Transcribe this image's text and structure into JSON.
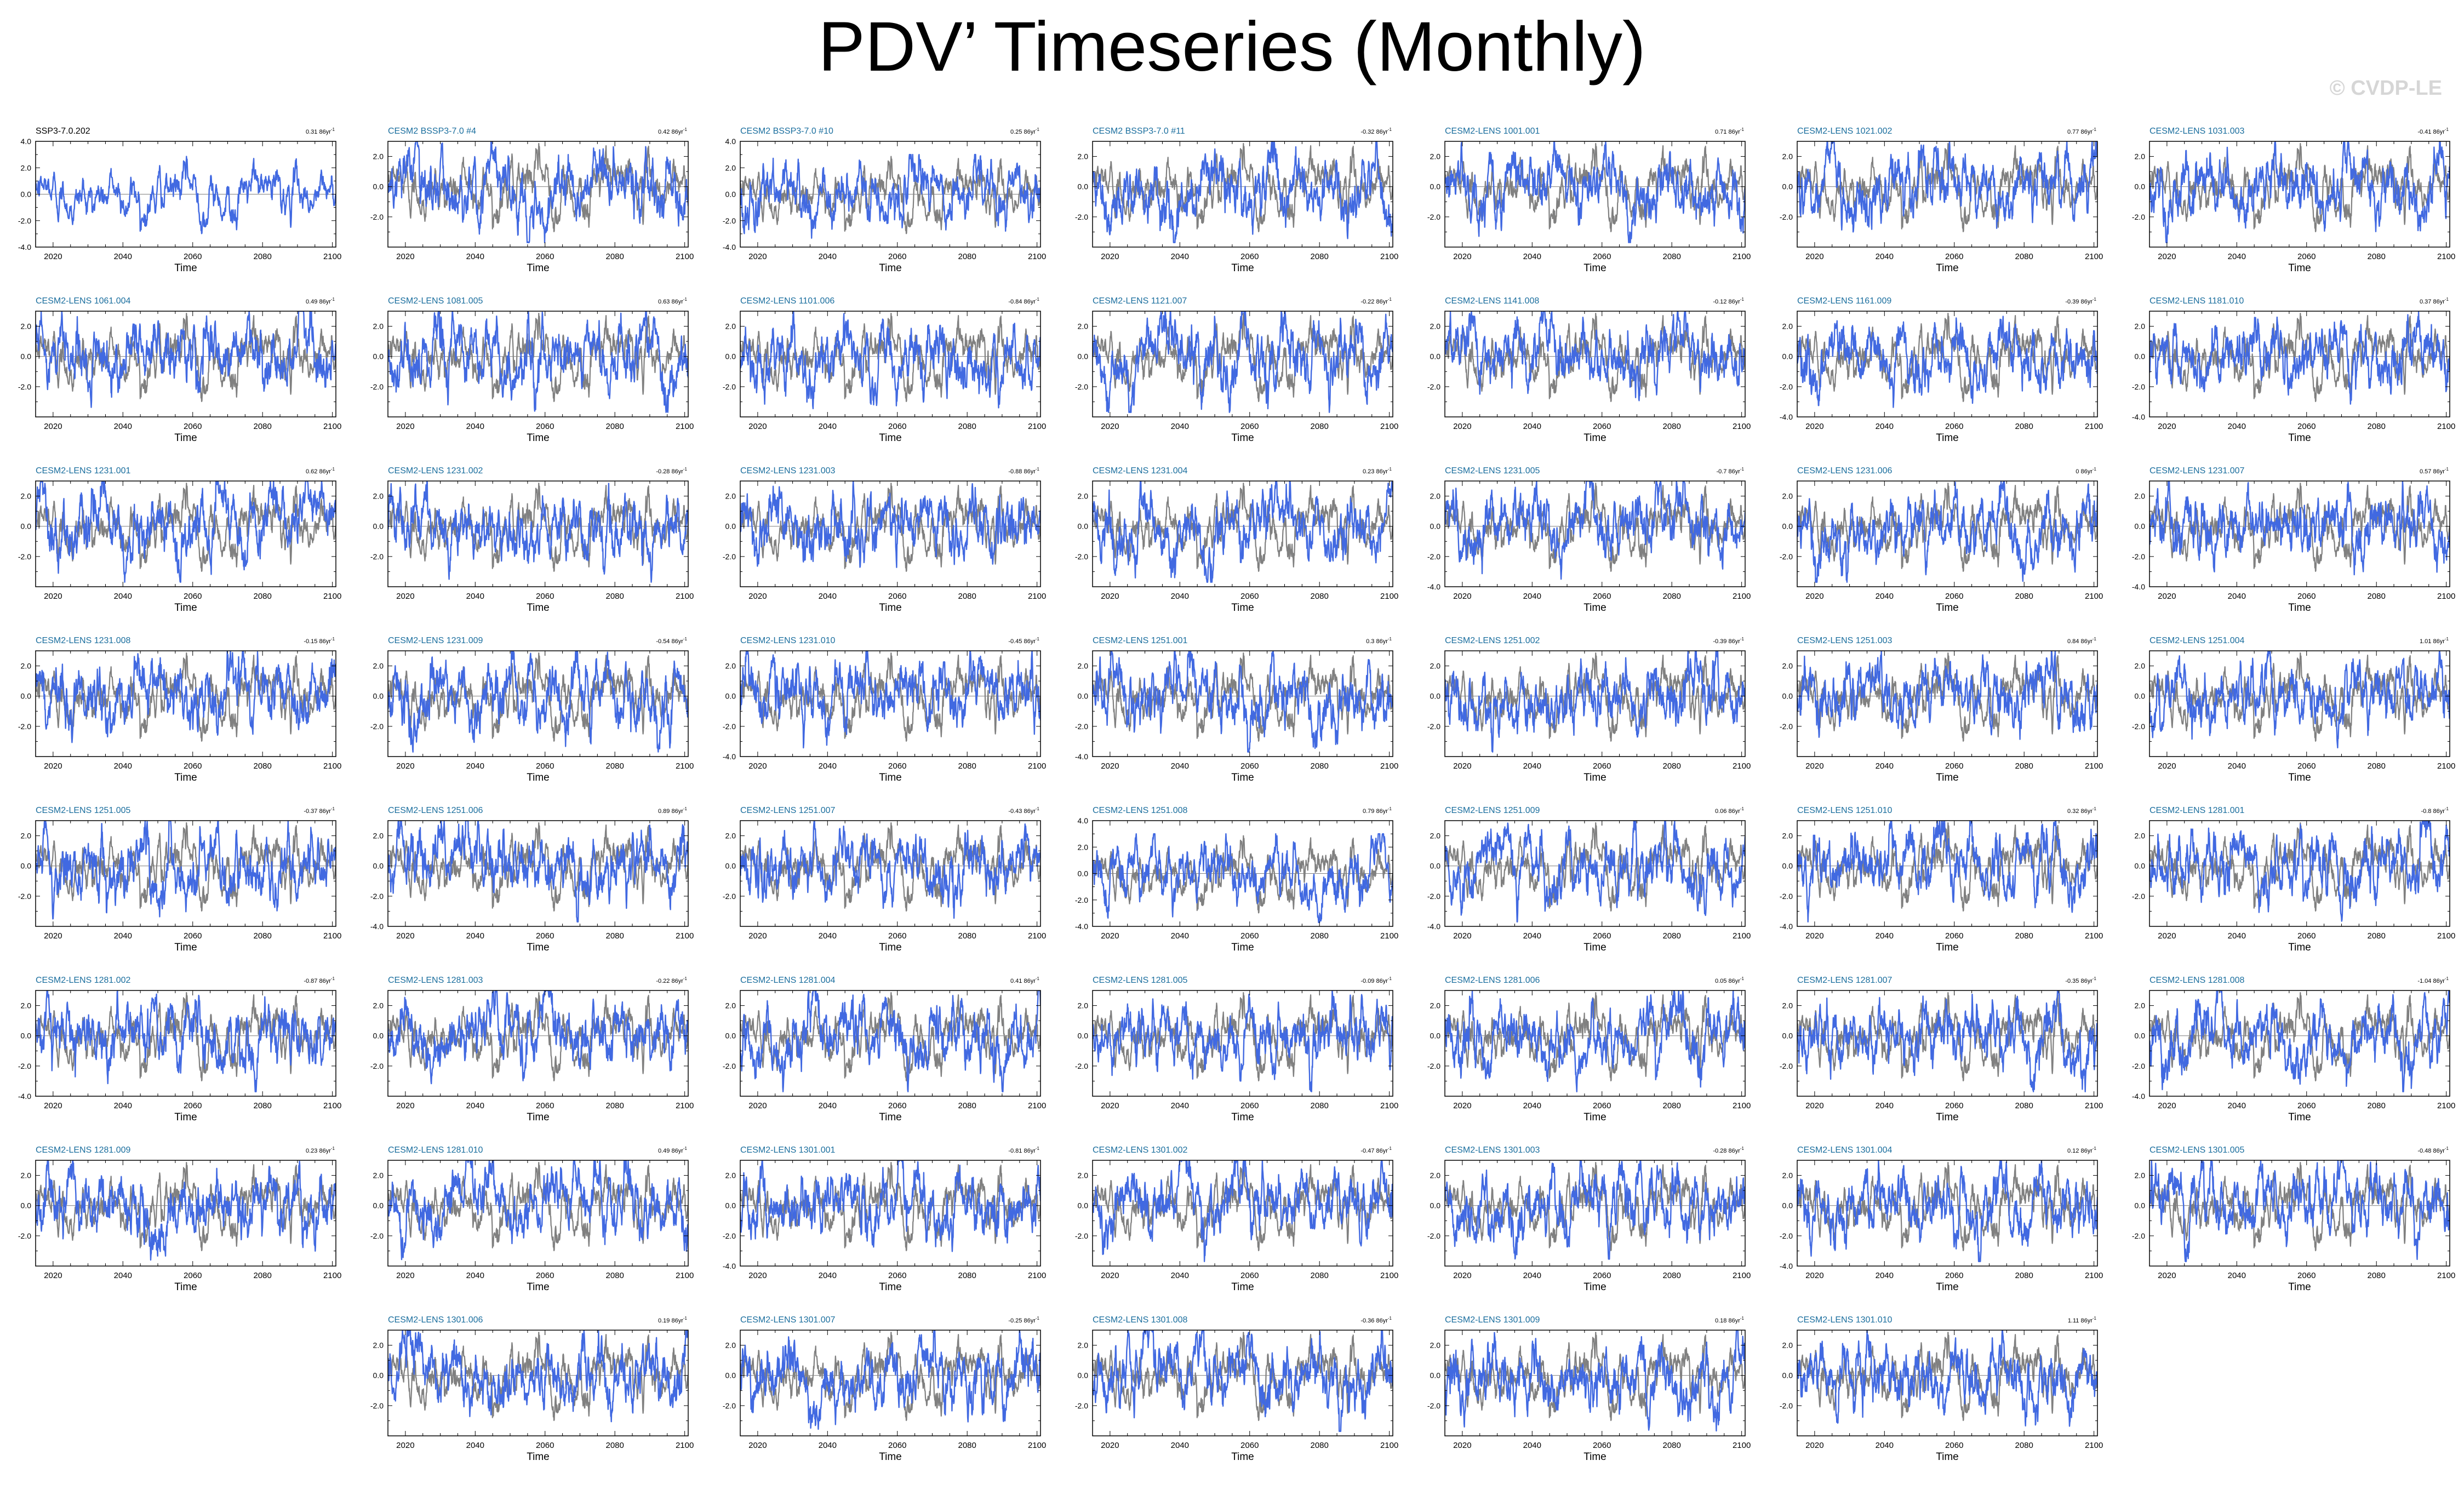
{
  "title": "PDV’ Timeseries (Monthly)",
  "watermark": "© CVDP-LE",
  "colors": {
    "observation": "#808080",
    "ensemble_member": "#4169e1",
    "reference_title": "#000000",
    "member_title": "#1a6e9e"
  },
  "chart_data": {
    "type": "line",
    "layout": "small-multiples",
    "rows": 8,
    "cols": 7,
    "xlabel": "Time",
    "xlim": [
      2015,
      2101
    ],
    "xticks": [
      2020,
      2040,
      2060,
      2080,
      2100
    ],
    "ylabel": "",
    "trend_unit": "86yr",
    "grid": false,
    "panels": [
      {
        "row": 0,
        "col": 0,
        "title": "SSP3-7.0.202",
        "trend": "0.31",
        "ylim": [
          -4,
          4
        ],
        "yticks": [
          "4.0",
          "2.0",
          "0.0",
          "-2.0",
          "-4.0"
        ],
        "reference": true
      },
      {
        "row": 0,
        "col": 1,
        "title": "CESM2 BSSP3-7.0 #4",
        "trend": "0.42",
        "ylim": [
          -4,
          3
        ],
        "yticks": [
          "2.0",
          "0.0",
          "-2.0"
        ]
      },
      {
        "row": 0,
        "col": 2,
        "title": "CESM2 BSSP3-7.0 #10",
        "trend": "0.25",
        "ylim": [
          -4,
          4
        ],
        "yticks": [
          "4.0",
          "2.0",
          "0.0",
          "-2.0",
          "-4.0"
        ]
      },
      {
        "row": 0,
        "col": 3,
        "title": "CESM2 BSSP3-7.0 #11",
        "trend": "-0.32",
        "ylim": [
          -4,
          3
        ],
        "yticks": [
          "2.0",
          "0.0",
          "-2.0"
        ]
      },
      {
        "row": 0,
        "col": 4,
        "title": "CESM2-LENS 1001.001",
        "trend": "0.71",
        "ylim": [
          -4,
          3
        ],
        "yticks": [
          "2.0",
          "0.0",
          "-2.0"
        ]
      },
      {
        "row": 0,
        "col": 5,
        "title": "CESM2-LENS 1021.002",
        "trend": "0.77",
        "ylim": [
          -4,
          3
        ],
        "yticks": [
          "2.0",
          "0.0",
          "-2.0"
        ]
      },
      {
        "row": 0,
        "col": 6,
        "title": "CESM2-LENS 1031.003",
        "trend": "-0.41",
        "ylim": [
          -4,
          3
        ],
        "yticks": [
          "2.0",
          "0.0",
          "-2.0"
        ]
      },
      {
        "row": 1,
        "col": 0,
        "title": "CESM2-LENS 1061.004",
        "trend": "0.49",
        "ylim": [
          -4,
          3
        ],
        "yticks": [
          "2.0",
          "0.0",
          "-2.0"
        ]
      },
      {
        "row": 1,
        "col": 1,
        "title": "CESM2-LENS 1081.005",
        "trend": "0.63",
        "ylim": [
          -4,
          3
        ],
        "yticks": [
          "2.0",
          "0.0",
          "-2.0"
        ]
      },
      {
        "row": 1,
        "col": 2,
        "title": "CESM2-LENS 1101.006",
        "trend": "-0.84",
        "ylim": [
          -4,
          3
        ],
        "yticks": [
          "2.0",
          "0.0",
          "-2.0"
        ]
      },
      {
        "row": 1,
        "col": 3,
        "title": "CESM2-LENS 1121.007",
        "trend": "-0.22",
        "ylim": [
          -4,
          3
        ],
        "yticks": [
          "2.0",
          "0.0",
          "-2.0"
        ]
      },
      {
        "row": 1,
        "col": 4,
        "title": "CESM2-LENS 1141.008",
        "trend": "-0.12",
        "ylim": [
          -4,
          3
        ],
        "yticks": [
          "2.0",
          "0.0",
          "-2.0"
        ]
      },
      {
        "row": 1,
        "col": 5,
        "title": "CESM2-LENS 1161.009",
        "trend": "-0.39",
        "ylim": [
          -4,
          3
        ],
        "yticks": [
          "2.0",
          "0.0",
          "-2.0",
          "-4.0"
        ]
      },
      {
        "row": 1,
        "col": 6,
        "title": "CESM2-LENS 1181.010",
        "trend": "0.37",
        "ylim": [
          -4,
          3
        ],
        "yticks": [
          "2.0",
          "0.0",
          "-2.0",
          "-4.0"
        ]
      },
      {
        "row": 2,
        "col": 0,
        "title": "CESM2-LENS 1231.001",
        "trend": "0.62",
        "ylim": [
          -4,
          3
        ],
        "yticks": [
          "2.0",
          "0.0",
          "-2.0"
        ]
      },
      {
        "row": 2,
        "col": 1,
        "title": "CESM2-LENS 1231.002",
        "trend": "-0.28",
        "ylim": [
          -4,
          3
        ],
        "yticks": [
          "2.0",
          "0.0",
          "-2.0"
        ]
      },
      {
        "row": 2,
        "col": 2,
        "title": "CESM2-LENS 1231.003",
        "trend": "-0.88",
        "ylim": [
          -4,
          3
        ],
        "yticks": [
          "2.0",
          "0.0",
          "-2.0"
        ]
      },
      {
        "row": 2,
        "col": 3,
        "title": "CESM2-LENS 1231.004",
        "trend": "0.23",
        "ylim": [
          -4,
          3
        ],
        "yticks": [
          "2.0",
          "0.0",
          "-2.0"
        ]
      },
      {
        "row": 2,
        "col": 4,
        "title": "CESM2-LENS 1231.005",
        "trend": "-0.7",
        "ylim": [
          -4,
          3
        ],
        "yticks": [
          "2.0",
          "0.0",
          "-2.0",
          "-4.0"
        ]
      },
      {
        "row": 2,
        "col": 5,
        "title": "CESM2-LENS 1231.006",
        "trend": "0",
        "ylim": [
          -4,
          3
        ],
        "yticks": [
          "2.0",
          "0.0",
          "-2.0"
        ]
      },
      {
        "row": 2,
        "col": 6,
        "title": "CESM2-LENS 1231.007",
        "trend": "0.57",
        "ylim": [
          -4,
          3
        ],
        "yticks": [
          "2.0",
          "0.0",
          "-2.0",
          "-4.0"
        ]
      },
      {
        "row": 3,
        "col": 0,
        "title": "CESM2-LENS 1231.008",
        "trend": "-0.15",
        "ylim": [
          -4,
          3
        ],
        "yticks": [
          "2.0",
          "0.0",
          "-2.0"
        ]
      },
      {
        "row": 3,
        "col": 1,
        "title": "CESM2-LENS 1231.009",
        "trend": "-0.54",
        "ylim": [
          -4,
          3
        ],
        "yticks": [
          "2.0",
          "0.0",
          "-2.0"
        ]
      },
      {
        "row": 3,
        "col": 2,
        "title": "CESM2-LENS 1231.010",
        "trend": "-0.45",
        "ylim": [
          -4,
          3
        ],
        "yticks": [
          "2.0",
          "0.0",
          "-2.0",
          "-4.0"
        ]
      },
      {
        "row": 3,
        "col": 3,
        "title": "CESM2-LENS 1251.001",
        "trend": "0.3",
        "ylim": [
          -4,
          3
        ],
        "yticks": [
          "2.0",
          "0.0",
          "-2.0",
          "-4.0"
        ]
      },
      {
        "row": 3,
        "col": 4,
        "title": "CESM2-LENS 1251.002",
        "trend": "-0.39",
        "ylim": [
          -4,
          3
        ],
        "yticks": [
          "2.0",
          "0.0",
          "-2.0"
        ]
      },
      {
        "row": 3,
        "col": 5,
        "title": "CESM2-LENS 1251.003",
        "trend": "0.84",
        "ylim": [
          -4,
          3
        ],
        "yticks": [
          "2.0",
          "0.0",
          "-2.0"
        ]
      },
      {
        "row": 3,
        "col": 6,
        "title": "CESM2-LENS 1251.004",
        "trend": "1.01",
        "ylim": [
          -4,
          3
        ],
        "yticks": [
          "2.0",
          "0.0",
          "-2.0"
        ]
      },
      {
        "row": 4,
        "col": 0,
        "title": "CESM2-LENS 1251.005",
        "trend": "-0.37",
        "ylim": [
          -4,
          3
        ],
        "yticks": [
          "2.0",
          "0.0",
          "-2.0"
        ]
      },
      {
        "row": 4,
        "col": 1,
        "title": "CESM2-LENS 1251.006",
        "trend": "0.89",
        "ylim": [
          -4,
          3
        ],
        "yticks": [
          "2.0",
          "0.0",
          "-2.0",
          "-4.0"
        ]
      },
      {
        "row": 4,
        "col": 2,
        "title": "CESM2-LENS 1251.007",
        "trend": "-0.43",
        "ylim": [
          -4,
          3
        ],
        "yticks": [
          "2.0",
          "0.0",
          "-2.0"
        ]
      },
      {
        "row": 4,
        "col": 3,
        "title": "CESM2-LENS 1251.008",
        "trend": "0.79",
        "ylim": [
          -4,
          4
        ],
        "yticks": [
          "4.0",
          "2.0",
          "0.0",
          "-2.0",
          "-4.0"
        ]
      },
      {
        "row": 4,
        "col": 4,
        "title": "CESM2-LENS 1251.009",
        "trend": "0.06",
        "ylim": [
          -4,
          3
        ],
        "yticks": [
          "2.0",
          "0.0",
          "-2.0",
          "-4.0"
        ]
      },
      {
        "row": 4,
        "col": 5,
        "title": "CESM2-LENS 1251.010",
        "trend": "0.32",
        "ylim": [
          -4,
          3
        ],
        "yticks": [
          "2.0",
          "0.0",
          "-2.0",
          "-4.0"
        ]
      },
      {
        "row": 4,
        "col": 6,
        "title": "CESM2-LENS 1281.001",
        "trend": "-0.8",
        "ylim": [
          -4,
          3
        ],
        "yticks": [
          "2.0",
          "0.0",
          "-2.0"
        ]
      },
      {
        "row": 5,
        "col": 0,
        "title": "CESM2-LENS 1281.002",
        "trend": "-0.87",
        "ylim": [
          -4,
          3
        ],
        "yticks": [
          "2.0",
          "0.0",
          "-2.0",
          "-4.0"
        ]
      },
      {
        "row": 5,
        "col": 1,
        "title": "CESM2-LENS 1281.003",
        "trend": "-0.22",
        "ylim": [
          -4,
          3
        ],
        "yticks": [
          "2.0",
          "0.0",
          "-2.0"
        ]
      },
      {
        "row": 5,
        "col": 2,
        "title": "CESM2-LENS 1281.004",
        "trend": "0.41",
        "ylim": [
          -4,
          3
        ],
        "yticks": [
          "2.0",
          "0.0",
          "-2.0"
        ]
      },
      {
        "row": 5,
        "col": 3,
        "title": "CESM2-LENS 1281.005",
        "trend": "-0.09",
        "ylim": [
          -4,
          3
        ],
        "yticks": [
          "2.0",
          "0.0",
          "-2.0"
        ]
      },
      {
        "row": 5,
        "col": 4,
        "title": "CESM2-LENS 1281.006",
        "trend": "0.05",
        "ylim": [
          -4,
          3
        ],
        "yticks": [
          "2.0",
          "0.0",
          "-2.0"
        ]
      },
      {
        "row": 5,
        "col": 5,
        "title": "CESM2-LENS 1281.007",
        "trend": "-0.35",
        "ylim": [
          -4,
          3
        ],
        "yticks": [
          "2.0",
          "0.0",
          "-2.0"
        ]
      },
      {
        "row": 5,
        "col": 6,
        "title": "CESM2-LENS 1281.008",
        "trend": "-1.04",
        "ylim": [
          -4,
          3
        ],
        "yticks": [
          "2.0",
          "0.0",
          "-2.0",
          "-4.0"
        ]
      },
      {
        "row": 6,
        "col": 0,
        "title": "CESM2-LENS 1281.009",
        "trend": "0.23",
        "ylim": [
          -4,
          3
        ],
        "yticks": [
          "2.0",
          "0.0",
          "-2.0"
        ]
      },
      {
        "row": 6,
        "col": 1,
        "title": "CESM2-LENS 1281.010",
        "trend": "0.49",
        "ylim": [
          -4,
          3
        ],
        "yticks": [
          "2.0",
          "0.0",
          "-2.0"
        ]
      },
      {
        "row": 6,
        "col": 2,
        "title": "CESM2-LENS 1301.001",
        "trend": "-0.81",
        "ylim": [
          -4,
          3
        ],
        "yticks": [
          "2.0",
          "0.0",
          "-2.0",
          "-4.0"
        ]
      },
      {
        "row": 6,
        "col": 3,
        "title": "CESM2-LENS 1301.002",
        "trend": "-0.47",
        "ylim": [
          -4,
          3
        ],
        "yticks": [
          "2.0",
          "0.0",
          "-2.0"
        ]
      },
      {
        "row": 6,
        "col": 4,
        "title": "CESM2-LENS 1301.003",
        "trend": "-0.28",
        "ylim": [
          -4,
          3
        ],
        "yticks": [
          "2.0",
          "0.0",
          "-2.0"
        ]
      },
      {
        "row": 6,
        "col": 5,
        "title": "CESM2-LENS 1301.004",
        "trend": "0.12",
        "ylim": [
          -4,
          3
        ],
        "yticks": [
          "2.0",
          "0.0",
          "-2.0",
          "-4.0"
        ]
      },
      {
        "row": 6,
        "col": 6,
        "title": "CESM2-LENS 1301.005",
        "trend": "-0.48",
        "ylim": [
          -4,
          3
        ],
        "yticks": [
          "2.0",
          "0.0",
          "-2.0"
        ]
      },
      {
        "row": 7,
        "col": 1,
        "title": "CESM2-LENS 1301.006",
        "trend": "0.19",
        "ylim": [
          -4,
          3
        ],
        "yticks": [
          "2.0",
          "0.0",
          "-2.0"
        ]
      },
      {
        "row": 7,
        "col": 2,
        "title": "CESM2-LENS 1301.007",
        "trend": "-0.25",
        "ylim": [
          -4,
          3
        ],
        "yticks": [
          "2.0",
          "0.0",
          "-2.0"
        ]
      },
      {
        "row": 7,
        "col": 3,
        "title": "CESM2-LENS 1301.008",
        "trend": "-0.36",
        "ylim": [
          -4,
          3
        ],
        "yticks": [
          "2.0",
          "0.0",
          "-2.0"
        ]
      },
      {
        "row": 7,
        "col": 4,
        "title": "CESM2-LENS 1301.009",
        "trend": "0.18",
        "ylim": [
          -4,
          3
        ],
        "yticks": [
          "2.0",
          "0.0",
          "-2.0"
        ]
      },
      {
        "row": 7,
        "col": 5,
        "title": "CESM2-LENS 1301.010",
        "trend": "1.11",
        "ylim": [
          -4,
          3
        ],
        "yticks": [
          "2.0",
          "0.0",
          "-2.0"
        ]
      }
    ]
  }
}
